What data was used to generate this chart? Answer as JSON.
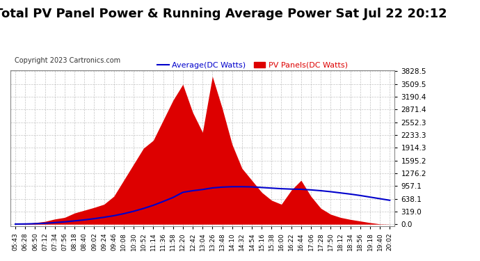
{
  "title": "Total PV Panel Power & Running Average Power Sat Jul 22 20:12",
  "copyright": "Copyright 2023 Cartronics.com",
  "legend_avg": "Average(DC Watts)",
  "legend_pv": "PV Panels(DC Watts)",
  "yticks": [
    0.0,
    319.0,
    638.1,
    957.1,
    1276.2,
    1595.2,
    1914.3,
    2233.3,
    2552.3,
    2871.4,
    3190.4,
    3509.5,
    3828.5
  ],
  "ymax": 3828.5,
  "ymin": -50,
  "bg_color": "#ffffff",
  "grid_color": "#aaaaaa",
  "fill_color": "#dd0000",
  "line_color": "#0000cc",
  "title_fontsize": 13,
  "xtick_labels": [
    "05:43",
    "06:28",
    "06:50",
    "07:12",
    "07:34",
    "07:56",
    "08:18",
    "08:40",
    "09:02",
    "09:24",
    "09:46",
    "10:08",
    "10:30",
    "10:52",
    "11:14",
    "11:36",
    "11:58",
    "12:20",
    "12:42",
    "13:04",
    "13:26",
    "13:48",
    "14:10",
    "14:32",
    "14:54",
    "15:16",
    "15:38",
    "16:00",
    "16:22",
    "16:44",
    "17:06",
    "17:28",
    "17:50",
    "18:12",
    "18:34",
    "18:56",
    "19:18",
    "19:40",
    "20:02"
  ],
  "pv_values": [
    5,
    15,
    40,
    70,
    130,
    170,
    280,
    350,
    420,
    500,
    700,
    1100,
    1500,
    1900,
    2100,
    2600,
    3100,
    3500,
    2800,
    2300,
    3700,
    2900,
    2000,
    1400,
    1100,
    800,
    600,
    500,
    850,
    1100,
    700,
    400,
    250,
    170,
    120,
    80,
    40,
    8,
    2
  ],
  "avg_values": [
    5,
    8,
    15,
    25,
    42,
    60,
    85,
    110,
    140,
    175,
    215,
    265,
    325,
    395,
    475,
    570,
    670,
    800,
    840,
    870,
    910,
    930,
    940,
    940,
    935,
    920,
    905,
    890,
    880,
    875,
    860,
    840,
    815,
    785,
    755,
    720,
    680,
    640,
    600
  ]
}
